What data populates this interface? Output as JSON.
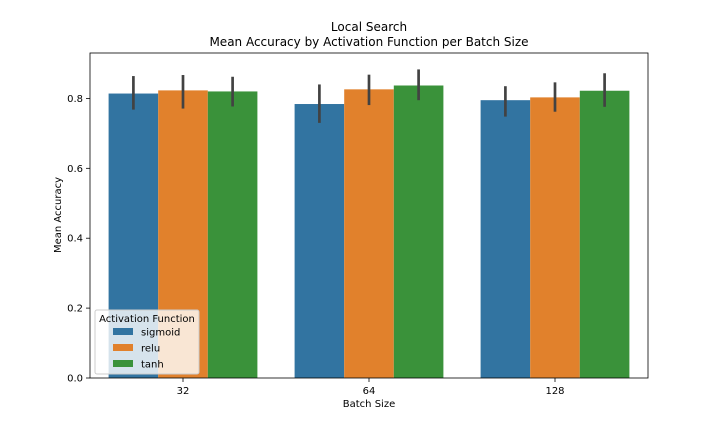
{
  "chart_data": {
    "type": "bar",
    "title": "Local Search",
    "subtitle": "Mean Accuracy by Activation Function per Batch Size",
    "xlabel": "Batch Size",
    "ylabel": "Mean Accuracy",
    "categories": [
      "32",
      "64",
      "128"
    ],
    "ylim": [
      0,
      0.93
    ],
    "yticks": [
      0.0,
      0.2,
      0.4,
      0.6,
      0.8
    ],
    "ytick_labels": [
      "0.0",
      "0.2",
      "0.4",
      "0.6",
      "0.8"
    ],
    "grid": false,
    "legend": {
      "title": "Activation Function",
      "placement": "lower-left"
    },
    "series": [
      {
        "name": "sigmoid",
        "color": "#3274a1",
        "values": [
          0.814,
          0.784,
          0.795
        ],
        "error_low": [
          0.768,
          0.73,
          0.748
        ],
        "error_high": [
          0.864,
          0.84,
          0.835
        ]
      },
      {
        "name": "relu",
        "color": "#e1812c",
        "values": [
          0.823,
          0.826,
          0.803
        ],
        "error_low": [
          0.771,
          0.781,
          0.762
        ],
        "error_high": [
          0.867,
          0.868,
          0.846
        ]
      },
      {
        "name": "tanh",
        "color": "#3a923a",
        "values": [
          0.82,
          0.837,
          0.822
        ],
        "error_low": [
          0.777,
          0.795,
          0.776
        ],
        "error_high": [
          0.862,
          0.883,
          0.872
        ]
      }
    ],
    "errorbar_color": "#424242"
  }
}
